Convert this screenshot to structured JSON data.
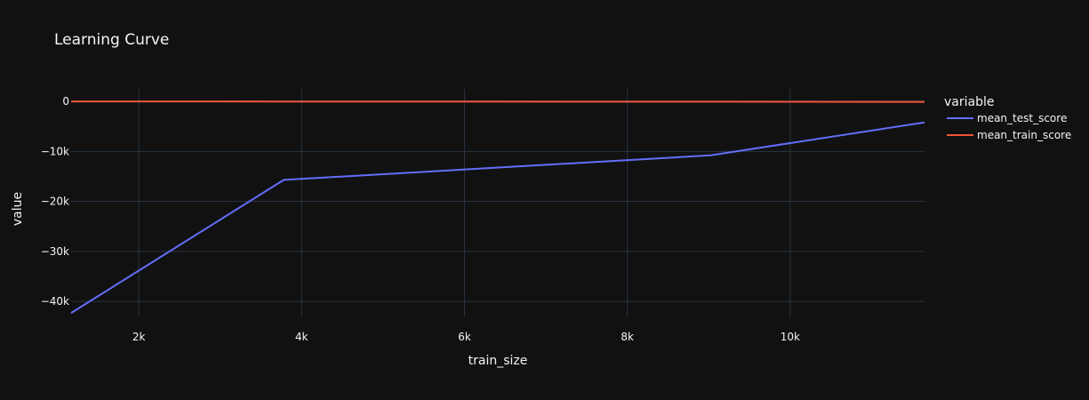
{
  "chart_data": {
    "type": "line",
    "title": "Learning Curve",
    "xlabel": "train_size",
    "ylabel": "value",
    "xlim": [
      1169,
      11650
    ],
    "ylim": [
      -43000,
      2500
    ],
    "x_ticks": [
      {
        "value": 2000,
        "label": "2k"
      },
      {
        "value": 4000,
        "label": "4k"
      },
      {
        "value": 6000,
        "label": "6k"
      },
      {
        "value": 8000,
        "label": "8k"
      },
      {
        "value": 10000,
        "label": "10k"
      }
    ],
    "y_ticks": [
      {
        "value": 0,
        "label": "0"
      },
      {
        "value": -10000,
        "label": "−10k"
      },
      {
        "value": -20000,
        "label": "−20k"
      },
      {
        "value": -30000,
        "label": "−30k"
      },
      {
        "value": -40000,
        "label": "−40k"
      }
    ],
    "grid": true,
    "legend": {
      "title": "variable",
      "placement": "right"
    },
    "series": [
      {
        "name": "mean_test_score",
        "color": "#636efa",
        "x": [
          1169,
          3780,
          9020,
          11650
        ],
        "y": [
          -42300,
          -15700,
          -10800,
          -4200
        ]
      },
      {
        "name": "mean_train_score",
        "color": "#ef553b",
        "x": [
          1169,
          3780,
          9020,
          11650
        ],
        "y": [
          0,
          -30,
          -60,
          -100
        ]
      }
    ]
  },
  "colors": {
    "background": "#111111",
    "grid": "#283442",
    "text": "#f2f5fa"
  }
}
